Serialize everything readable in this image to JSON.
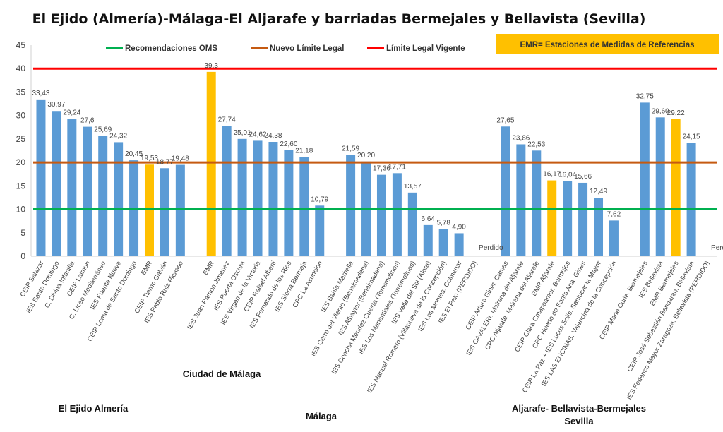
{
  "chart_data": {
    "type": "bar",
    "title": "El Ejido (Almería)-Málaga-El Aljarafe y barriadas Bermejales y Bellavista (Sevilla)",
    "ylim": [
      0,
      45
    ],
    "yticks": [
      0,
      5,
      10,
      15,
      20,
      25,
      30,
      35,
      40,
      45
    ],
    "grid": false,
    "legend_placement": "top",
    "note_box": {
      "text": "EMR= Estaciones de Medidas de Referencias",
      "color": "#FFC000"
    },
    "reference_lines": [
      {
        "name": "Recomendaciones OMS",
        "value": 10,
        "color": "#00B050"
      },
      {
        "name": "Nuevo Límite Legal",
        "value": 20,
        "color": "#C55A11"
      },
      {
        "name": "Límite Legal Vigente",
        "value": 40,
        "color": "#FF0000"
      }
    ],
    "colors": {
      "school": "#5B9BD5",
      "emr": "#FFC000"
    },
    "categories": [
      "CEIP Salazar",
      "IES Santo Domingo",
      "C. Divina Infantita",
      "CEIP Laimun",
      "C. Liceo Mediterráneo",
      "IES Fuente Nueva",
      "CEIP Loma de Santo Domingo",
      "EMR",
      "CEIP Tierno Galván",
      "IES Pablo Ruiz Picasso",
      "",
      "EMR",
      "IES Juan Ramon Jimenez",
      "IES Puerta Oscura",
      "IES Virgen de la Victoria",
      "CEIP Rafael Alberti",
      "IES Fernando de los Rios",
      "IES Sierra Bermeja",
      "CPC La Asunción",
      "",
      "IES Bahía Marbella",
      "IES Cerro del Viento (Benalmadena)",
      "IES Albaytar (Benalmadena)",
      "IES Concha Méndez Cuesta (Torremolinos)",
      "IES Los Manantiales (Torremolinos)",
      "IES Valle del Sol (Alora)",
      "IES Manuel Romero (Villanueva de la Concepción)",
      "IES Los Montes. Colmenar",
      "IES El Palo (PERDIDO)",
      "",
      "CEIP Arturo Giner. Camas",
      "IES CAVALERI. Mairena del Aljarafe",
      "CPC Aljarafe. Mairena del Aljarafe",
      "EMR Aljarafe",
      "CEIP Clara Cmapoamor. Bormujos",
      "CPC Huerto de Santa Ana. Gines",
      "CEIP La Paz + IES Lucus Solis. Sanlúcar la Mayor",
      "IES LAS ENCINAS. Valencina de la Concepción",
      "",
      "CEIP Marie Curie. Bermejales",
      "IES Bellavista",
      "EMR Bermejales",
      "CEIP José Sebastián Bandarán. Bellavista",
      "IES Federico Mayor Zaragoza. Bellavista (PERDIDO)"
    ],
    "values": [
      33.43,
      30.97,
      29.24,
      27.6,
      25.69,
      24.32,
      20.45,
      19.53,
      18.77,
      19.48,
      null,
      39.3,
      27.74,
      25.01,
      24.62,
      24.38,
      22.6,
      21.18,
      10.79,
      null,
      21.59,
      20.2,
      17.36,
      17.71,
      13.57,
      6.64,
      5.78,
      4.9,
      null,
      null,
      27.65,
      23.86,
      22.53,
      16.17,
      16.04,
      15.66,
      12.49,
      7.62,
      null,
      32.75,
      29.6,
      29.22,
      24.15,
      null
    ],
    "data_labels": [
      "33,43",
      "30,97",
      "29,24",
      "27,6",
      "25,69",
      "24,32",
      "20,45",
      "19,53",
      "18,77",
      "19,48",
      "",
      "39,3",
      "27,74",
      "25,01",
      "24,62",
      "24,38",
      "22,60",
      "21,18",
      "10,79",
      "",
      "21,59",
      "20,20",
      "17,36",
      "17,71",
      "13,57",
      "6,64",
      "5,78",
      "4,90",
      "Perdido",
      "",
      "27,65",
      "23,86",
      "22,53",
      "16,17",
      "16,04",
      "15,66",
      "12,49",
      "7,62",
      "",
      "32,75",
      "29,60",
      "29,22",
      "24,15",
      "Perdido"
    ],
    "emr_flags": [
      0,
      0,
      0,
      0,
      0,
      0,
      0,
      1,
      0,
      0,
      0,
      1,
      0,
      0,
      0,
      0,
      0,
      0,
      0,
      0,
      0,
      0,
      0,
      0,
      0,
      0,
      0,
      0,
      0,
      0,
      0,
      0,
      0,
      1,
      0,
      0,
      0,
      0,
      0,
      0,
      0,
      1,
      0,
      0
    ],
    "group_labels": {
      "el_ejido": "El Ejido Almería",
      "ciudad_malaga": "Ciudad de Málaga",
      "malaga": "Málaga",
      "aljarafe_1": "Aljarafe- Bellavista-Bermejales",
      "aljarafe_2": "Sevilla"
    }
  }
}
